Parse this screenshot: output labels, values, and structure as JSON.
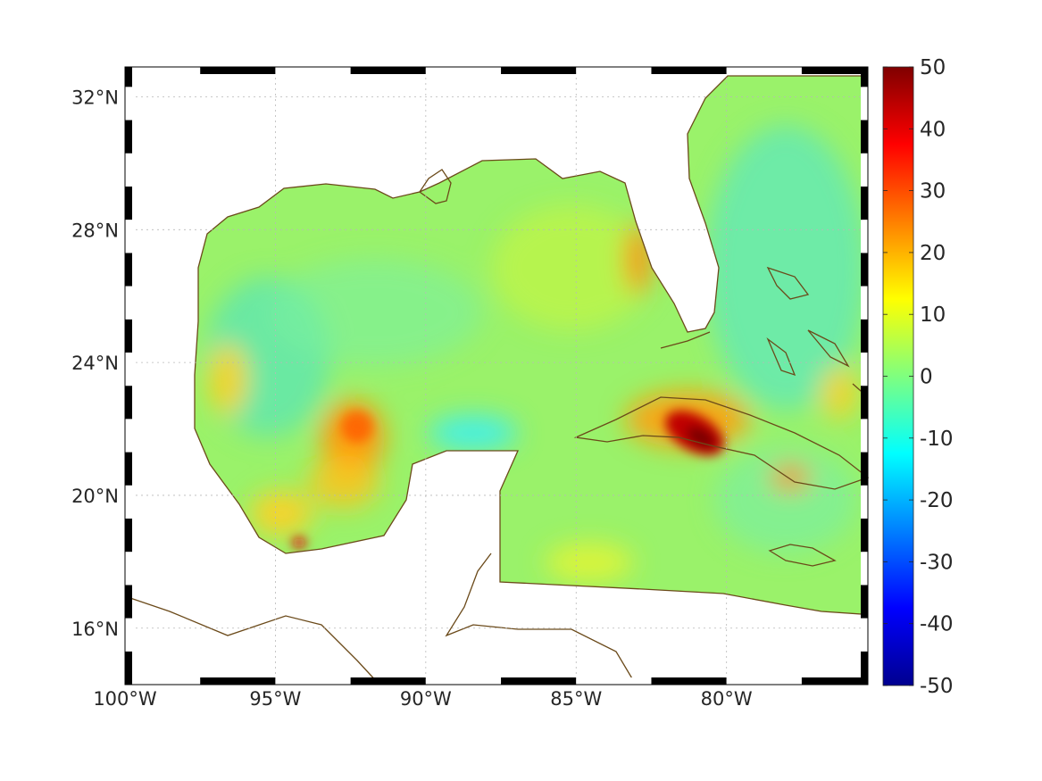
{
  "map": {
    "lon_range": [
      -100,
      -75.3
    ],
    "lat_range": [
      14.3,
      32.9
    ],
    "lon_ticks": [
      {
        "value": -100,
        "label": "100°W"
      },
      {
        "value": -95,
        "label": "95°W"
      },
      {
        "value": -90,
        "label": "90°W"
      },
      {
        "value": -85,
        "label": "85°W"
      },
      {
        "value": -80,
        "label": "80°W"
      }
    ],
    "lat_ticks": [
      {
        "value": 16,
        "label": "16°N"
      },
      {
        "value": 20,
        "label": "20°N"
      },
      {
        "value": 24,
        "label": "24°N"
      },
      {
        "value": 28,
        "label": "28°N"
      },
      {
        "value": 32,
        "label": "32°N"
      }
    ],
    "grid": "dotted",
    "coastline_color": "#6b4a1a",
    "frame_style": "black-white alternating border"
  },
  "colorbar": {
    "range": [
      -50,
      50
    ],
    "colormap": "jet",
    "placement": "right",
    "ticks": [
      {
        "value": 50,
        "label": "50"
      },
      {
        "value": 40,
        "label": "40"
      },
      {
        "value": 30,
        "label": "30"
      },
      {
        "value": 20,
        "label": "20"
      },
      {
        "value": 10,
        "label": "10"
      },
      {
        "value": 0,
        "label": "0"
      },
      {
        "value": -10,
        "label": "-10"
      },
      {
        "value": -20,
        "label": "-20"
      },
      {
        "value": -30,
        "label": "-30"
      },
      {
        "value": -40,
        "label": "-40"
      },
      {
        "value": -50,
        "label": "-50"
      }
    ]
  },
  "field": {
    "background_value": 2,
    "anomalies": [
      {
        "region": "central Cuba",
        "peak_value": 50
      },
      {
        "region": "Bay of Campeche (south)",
        "peak_value": 30
      },
      {
        "region": "eastern Cuba",
        "peak_value": 28
      },
      {
        "region": "central-southern Gulf",
        "peak_value": 22
      },
      {
        "region": "west Florida shelf",
        "peak_value": 22
      },
      {
        "region": "western Gulf",
        "peak_value": 16
      },
      {
        "region": "north of Yucatan",
        "peak_value": -10
      }
    ]
  }
}
